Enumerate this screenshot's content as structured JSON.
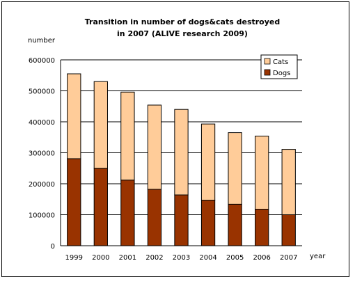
{
  "chart_data": {
    "type": "bar",
    "stacked": true,
    "title_line1": "Transition in number of dogs&cats destroyed",
    "title_line2": "in 2007 (ALIVE research 2009)",
    "ylabel": "number",
    "xlabel": "year",
    "categories": [
      "1999",
      "2000",
      "2001",
      "2002",
      "2003",
      "2004",
      "2005",
      "2006",
      "2007"
    ],
    "ylim": [
      0,
      600000
    ],
    "yticks": [
      0,
      100000,
      200000,
      300000,
      400000,
      500000,
      600000
    ],
    "ytick_labels": [
      "0",
      "100000",
      "200000",
      "300000",
      "400000",
      "500000",
      "600000"
    ],
    "grid": true,
    "legend_position": "top-right",
    "series": [
      {
        "name": "Dogs",
        "color": "#993300",
        "values": [
          281000,
          250000,
          212000,
          182000,
          164000,
          147000,
          134000,
          118000,
          100000
        ]
      },
      {
        "name": "Cats",
        "color": "#FFCC99",
        "values": [
          274000,
          280000,
          284000,
          272000,
          276000,
          246000,
          231000,
          236000,
          211000
        ]
      }
    ],
    "legend": [
      "Cats",
      "Dogs"
    ]
  }
}
